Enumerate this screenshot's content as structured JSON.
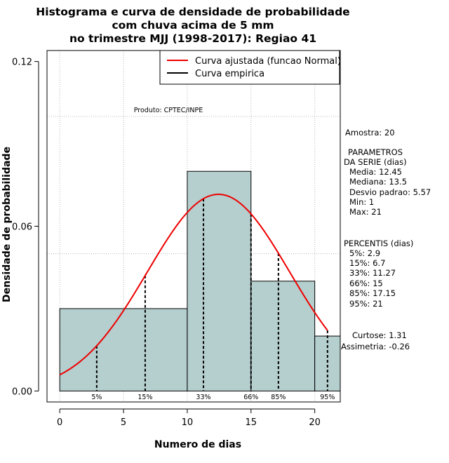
{
  "chart_data": {
    "type": "bar",
    "title_lines": [
      "Histograma e curva de densidade de probabilidade",
      "com chuva acima de 5 mm",
      "no trimestre MJJ (1998-2017): Regiao 41"
    ],
    "xlabel": "Numero de dias",
    "ylabel": "Densidade de probabilidade",
    "xlim": [
      -1,
      22
    ],
    "ylim": [
      -0.004,
      0.124
    ],
    "x_ticks": [
      0,
      5,
      10,
      15,
      20
    ],
    "x_tick_labels": [
      "0",
      "5",
      "10",
      "15",
      "20"
    ],
    "y_ticks": [
      0,
      0.06,
      0.12
    ],
    "y_tick_labels": [
      "0.00",
      "0.06",
      "0.12"
    ],
    "grid_x": [
      0,
      5,
      10,
      15,
      20
    ],
    "grid_y": [
      0.05,
      0.1
    ],
    "bars": [
      {
        "x0": 0,
        "x1": 10,
        "density": 0.03
      },
      {
        "x0": 10,
        "x1": 15,
        "density": 0.08
      },
      {
        "x0": 15,
        "x1": 20,
        "density": 0.04
      },
      {
        "x0": 20,
        "x1": 22,
        "density": 0.02
      }
    ],
    "bar_color": "#b5cece",
    "normal_curve": {
      "mean": 12.45,
      "sd": 5.57,
      "x_from": 0,
      "x_to": 21,
      "color": "#ee0000"
    },
    "percentile_markers": [
      {
        "label": "5%",
        "x": 2.9
      },
      {
        "label": "15%",
        "x": 6.7
      },
      {
        "label": "33%",
        "x": 11.27
      },
      {
        "label": "66%",
        "x": 15
      },
      {
        "label": "85%",
        "x": 17.15
      },
      {
        "label": "95%",
        "x": 21
      }
    ],
    "legend": {
      "placement": "top-right",
      "entries": [
        {
          "label": "Curva ajustada (funcao Normal)",
          "color": "#ee0000"
        },
        {
          "label": "Curva empirica",
          "color": "#000000"
        }
      ]
    },
    "credit": "Produto: CPTEC/INPE",
    "side_panel": {
      "amostra": "Amostra: 20",
      "parametros_lines": [
        "PARAMETROS",
        "DA SERIE (dias)",
        "Media: 12.45",
        "Mediana: 13.5",
        "Desvio padrao: 5.57",
        "Min: 1",
        "Max: 21"
      ],
      "percentis_lines": [
        "PERCENTIS (dias)",
        "5%: 2.9",
        "15%: 6.7",
        "33%: 11.27",
        "66%: 15",
        "85%: 17.15",
        "95%: 21"
      ],
      "curtose": "Curtose: 1.31",
      "assimetria": "Assimetria: -0.26"
    }
  }
}
